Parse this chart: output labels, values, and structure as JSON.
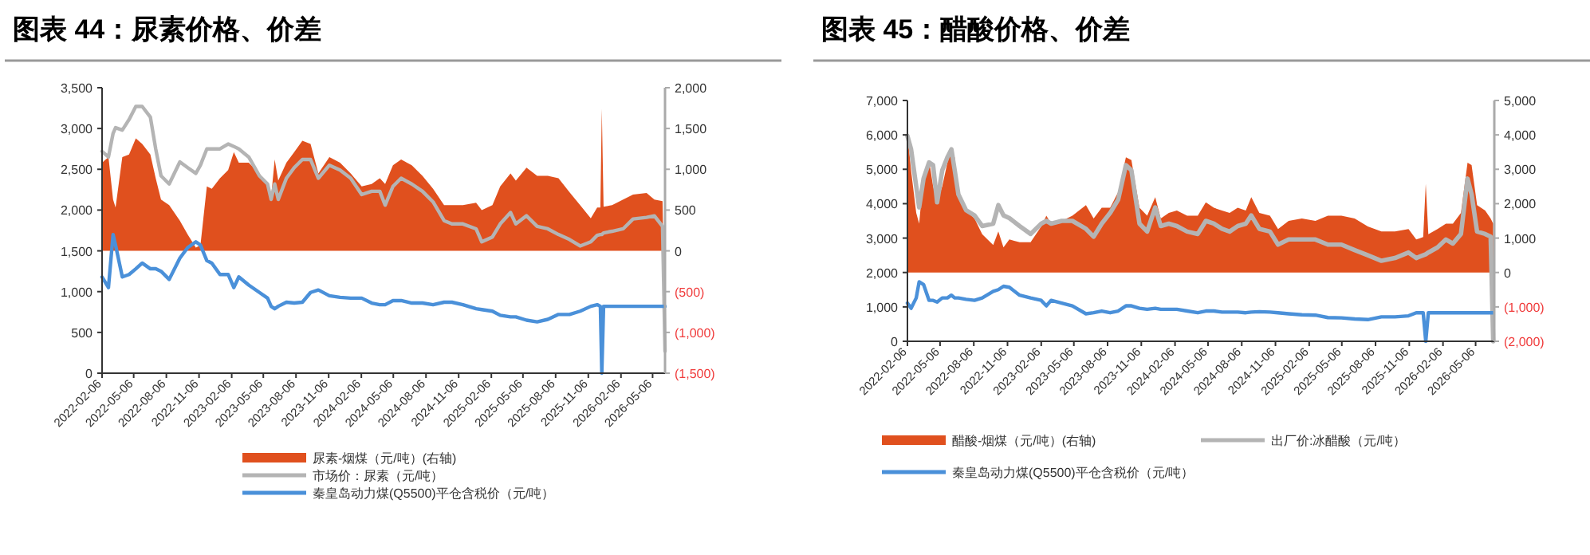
{
  "chart_data": [
    {
      "type": "line",
      "title": "图表 44：尿素价格、价差",
      "legend": "bottom",
      "x": [
        "2022-02-06",
        "2022-02-24",
        "2022-03-09",
        "2022-03-16",
        "2022-04-04",
        "2022-04-23",
        "2022-05-12",
        "2022-05-30",
        "2022-06-22",
        "2022-07-07",
        "2022-07-22",
        "2022-08-14",
        "2022-09-13",
        "2022-10-05",
        "2022-10-28",
        "2022-11-10",
        "2022-11-28",
        "2022-12-12",
        "2023-01-04",
        "2023-01-27",
        "2023-02-12",
        "2023-02-26",
        "2023-03-26",
        "2023-04-25",
        "2023-05-18",
        "2023-05-28",
        "2023-06-07",
        "2023-06-17",
        "2023-07-10",
        "2023-08-01",
        "2023-08-24",
        "2023-09-16",
        "2023-10-08",
        "2023-11-08",
        "2023-12-08",
        "2024-01-07",
        "2024-02-07",
        "2024-03-06",
        "2024-03-29",
        "2024-04-13",
        "2024-05-05",
        "2024-05-28",
        "2024-06-27",
        "2024-07-27",
        "2024-08-26",
        "2024-09-26",
        "2024-10-18",
        "2024-11-18",
        "2024-12-25",
        "2025-01-10",
        "2025-02-09",
        "2025-03-03",
        "2025-04-01",
        "2025-04-16",
        "2025-05-16",
        "2025-06-15",
        "2025-07-15",
        "2025-08-14",
        "2025-09-14",
        "2025-10-14",
        "2025-11-13",
        "2025-12-01",
        "2025-12-10",
        "2025-12-14",
        "2025-12-19",
        "2026-01-12",
        "2026-02-12",
        "2026-03-12",
        "2026-04-19",
        "2026-05-11",
        "2026-06-03",
        "2026-06-10"
      ],
      "xlim": [
        "2022-02-06",
        "2026-06-10"
      ],
      "xticks": [
        "2022-02-06",
        "2022-05-06",
        "2022-08-06",
        "2022-11-06",
        "2023-02-06",
        "2023-05-06",
        "2023-08-06",
        "2023-11-06",
        "2024-02-06",
        "2024-05-06",
        "2024-08-06",
        "2024-11-06",
        "2025-02-06",
        "2025-05-06",
        "2025-08-06",
        "2025-11-06",
        "2026-02-06",
        "2026-05-06"
      ],
      "ylim": [
        0,
        3500
      ],
      "yticks": [
        {
          "value": 0,
          "label": "0"
        },
        500,
        {
          "value": 1000,
          "label": "1,000"
        },
        {
          "value": 1500,
          "label": "1,500"
        },
        {
          "value": 2000,
          "label": "2,000"
        },
        {
          "value": 2500,
          "label": "2,500"
        },
        {
          "value": 3000,
          "label": "3,000"
        },
        {
          "value": 3500,
          "label": "3,500"
        }
      ],
      "y2lim": [
        -1500,
        2000
      ],
      "y2ticks": [
        {
          "value": -1500,
          "label": "(1,500)"
        },
        {
          "value": -1000,
          "label": "(1,000)"
        },
        {
          "value": -500,
          "label": "(500)"
        },
        {
          "value": 0,
          "label": "0"
        },
        500,
        {
          "value": 1000,
          "label": "1,000"
        },
        {
          "value": 1500,
          "label": "1,500"
        },
        {
          "value": 2000,
          "label": "2,000"
        }
      ],
      "series": [
        {
          "name": "尿素-烟煤（元/吨）(右轴)",
          "type": "area",
          "axis": "y2",
          "color": "#e0501e",
          "values": [
            1080,
            1150,
            630,
            530,
            1150,
            1180,
            1380,
            1310,
            1180,
            890,
            630,
            560,
            370,
            200,
            40,
            70,
            790,
            760,
            890,
            990,
            1210,
            1080,
            1080,
            950,
            820,
            660,
            1120,
            860,
            1080,
            1210,
            1350,
            1310,
            950,
            1150,
            1080,
            950,
            790,
            820,
            890,
            820,
            1050,
            1120,
            1050,
            920,
            760,
            560,
            560,
            560,
            590,
            500,
            560,
            790,
            950,
            860,
            1020,
            920,
            920,
            890,
            720,
            560,
            400,
            530,
            530,
            1740,
            540,
            560,
            630,
            690,
            710,
            630,
            610,
            -1230
          ]
        },
        {
          "name": "市场价：尿素（元/吨）",
          "color": "#b4b4b4",
          "values": [
            2720,
            2650,
            2940,
            3010,
            2980,
            3110,
            3270,
            3270,
            3140,
            2750,
            2420,
            2320,
            2590,
            2520,
            2450,
            2550,
            2750,
            2750,
            2750,
            2810,
            2780,
            2750,
            2650,
            2420,
            2320,
            2130,
            2320,
            2130,
            2390,
            2520,
            2620,
            2620,
            2390,
            2550,
            2490,
            2390,
            2190,
            2230,
            2230,
            2060,
            2290,
            2390,
            2320,
            2230,
            2100,
            1870,
            1830,
            1830,
            1770,
            1610,
            1670,
            1830,
            1970,
            1830,
            1930,
            1800,
            1770,
            1700,
            1640,
            1560,
            1610,
            1690,
            1700,
            1700,
            1720,
            1740,
            1770,
            1890,
            1910,
            1930,
            1800,
            270
          ]
        },
        {
          "name": "秦皇岛动力煤(Q5500)平仓含税价（元/吨）",
          "color": "#4a90d9",
          "values": [
            1180,
            1050,
            1700,
            1570,
            1180,
            1210,
            1280,
            1350,
            1280,
            1280,
            1250,
            1150,
            1410,
            1540,
            1610,
            1570,
            1380,
            1350,
            1210,
            1210,
            1050,
            1180,
            1080,
            990,
            920,
            820,
            790,
            820,
            870,
            860,
            870,
            990,
            1020,
            950,
            930,
            920,
            920,
            860,
            840,
            840,
            890,
            890,
            860,
            860,
            840,
            870,
            870,
            840,
            790,
            780,
            760,
            710,
            690,
            690,
            650,
            630,
            660,
            720,
            720,
            760,
            820,
            840,
            820,
            0,
            820,
            820,
            820,
            820,
            820,
            820,
            820,
            820
          ]
        }
      ]
    },
    {
      "type": "line",
      "title": "图表 45：醋酸价格、价差",
      "legend": "bottom",
      "x": [
        "2022-02-06",
        "2022-02-16",
        "2022-03-02",
        "2022-03-10",
        "2022-03-22",
        "2022-04-06",
        "2022-04-17",
        "2022-04-28",
        "2022-05-12",
        "2022-05-26",
        "2022-06-06",
        "2022-06-15",
        "2022-06-25",
        "2022-07-16",
        "2022-08-08",
        "2022-08-29",
        "2022-09-28",
        "2022-10-12",
        "2022-10-26",
        "2022-11-11",
        "2022-12-09",
        "2023-01-08",
        "2023-02-06",
        "2023-02-20",
        "2023-03-05",
        "2023-04-03",
        "2023-05-02",
        "2023-06-08",
        "2023-06-29",
        "2023-07-21",
        "2023-08-13",
        "2023-09-04",
        "2023-09-25",
        "2023-10-10",
        "2023-11-01",
        "2023-11-22",
        "2023-12-14",
        "2023-12-29",
        "2024-01-20",
        "2024-02-11",
        "2024-03-10",
        "2024-04-08",
        "2024-04-30",
        "2024-05-22",
        "2024-06-13",
        "2024-07-04",
        "2024-07-26",
        "2024-08-17",
        "2024-09-01",
        "2024-09-23",
        "2024-10-22",
        "2024-11-13",
        "2024-12-12",
        "2025-01-17",
        "2025-02-23",
        "2025-03-29",
        "2025-05-05",
        "2025-06-10",
        "2025-07-16",
        "2025-08-22",
        "2025-09-28",
        "2025-11-04",
        "2025-11-25",
        "2025-12-14",
        "2025-12-21",
        "2025-12-28",
        "2026-01-22",
        "2026-02-14",
        "2026-03-05",
        "2026-03-27",
        "2026-04-14",
        "2026-04-25",
        "2026-05-10",
        "2026-06-01",
        "2026-06-16",
        "2026-06-23"
      ],
      "xlim": [
        "2022-02-06",
        "2026-06-26"
      ],
      "xticks": [
        "2022-02-06",
        "2022-05-06",
        "2022-08-06",
        "2022-11-06",
        "2023-02-06",
        "2023-05-06",
        "2023-08-06",
        "2023-11-06",
        "2024-02-06",
        "2024-05-06",
        "2024-08-06",
        "2024-11-06",
        "2025-02-06",
        "2025-05-06",
        "2025-08-06",
        "2025-11-06",
        "2026-02-06",
        "2026-05-06"
      ],
      "ylim": [
        0,
        7000
      ],
      "yticks": [
        {
          "value": 0,
          "label": "0"
        },
        {
          "value": 1000,
          "label": "1,000"
        },
        {
          "value": 2000,
          "label": "2,000"
        },
        {
          "value": 3000,
          "label": "3,000"
        },
        {
          "value": 4000,
          "label": "4,000"
        },
        {
          "value": 5000,
          "label": "5,000"
        },
        {
          "value": 6000,
          "label": "6,000"
        },
        {
          "value": 7000,
          "label": "7,000"
        }
      ],
      "y2lim": [
        -2000,
        5000
      ],
      "y2ticks": [
        {
          "value": -2000,
          "label": "(2,000)"
        },
        {
          "value": -1000,
          "label": "(1,000)"
        },
        {
          "value": 0,
          "label": "0"
        },
        {
          "value": 1000,
          "label": "1,000"
        },
        {
          "value": 2000,
          "label": "2,000"
        },
        {
          "value": 3000,
          "label": "3,000"
        },
        {
          "value": 4000,
          "label": "4,000"
        },
        {
          "value": 5000,
          "label": "5,000"
        }
      ],
      "series": [
        {
          "name": "醋酸-烟煤（元/吨）(右轴)",
          "type": "area",
          "axis": "y2",
          "color": "#e0501e",
          "values": [
            4040,
            2960,
            1730,
            1420,
            2810,
            3270,
            2500,
            2040,
            2500,
            3190,
            3580,
            3350,
            2190,
            1800,
            1570,
            1110,
            800,
            1190,
            730,
            960,
            880,
            880,
            1340,
            1650,
            1420,
            1500,
            1650,
            1960,
            1570,
            1880,
            1880,
            2340,
            3350,
            3270,
            1880,
            1650,
            2190,
            1570,
            1730,
            1800,
            1650,
            1650,
            2040,
            1880,
            1800,
            1730,
            1880,
            1800,
            2190,
            1730,
            1650,
            1260,
            1500,
            1570,
            1500,
            1650,
            1650,
            1570,
            1340,
            1190,
            1190,
            1260,
            960,
            1030,
            2580,
            1110,
            1260,
            1420,
            1420,
            1730,
            3190,
            3120,
            1960,
            1800,
            1570,
            1420
          ]
        },
        {
          "name": "出厂价:冰醋酸（元/吨）",
          "color": "#b4b4b4",
          "values": [
            5970,
            5580,
            4500,
            3890,
            4730,
            5200,
            5120,
            4040,
            4970,
            5350,
            5580,
            4970,
            4270,
            3810,
            3660,
            3350,
            3420,
            3960,
            3660,
            3580,
            3350,
            3120,
            3420,
            3500,
            3420,
            3500,
            3500,
            3270,
            3040,
            3420,
            3730,
            4120,
            5120,
            4970,
            3420,
            3190,
            3890,
            3350,
            3420,
            3350,
            3190,
            3120,
            3500,
            3420,
            3270,
            3190,
            3350,
            3420,
            3660,
            3270,
            3190,
            2810,
            2960,
            2960,
            2960,
            2810,
            2810,
            2650,
            2500,
            2340,
            2420,
            2580,
            2420,
            2500,
            2530,
            2580,
            2730,
            2960,
            2840,
            3120,
            4730,
            4270,
            3190,
            3120,
            3040,
            0
          ]
        },
        {
          "name": "秦皇岛动力煤(Q5500)平仓含税价（元/吨）",
          "color": "#4a90d9",
          "values": [
            1110,
            960,
            1260,
            1730,
            1650,
            1190,
            1190,
            1140,
            1260,
            1260,
            1340,
            1260,
            1260,
            1220,
            1190,
            1260,
            1450,
            1500,
            1600,
            1570,
            1340,
            1260,
            1190,
            1030,
            1190,
            1110,
            1030,
            800,
            830,
            880,
            830,
            880,
            1030,
            1030,
            960,
            930,
            960,
            930,
            930,
            930,
            880,
            830,
            880,
            880,
            850,
            850,
            850,
            830,
            850,
            860,
            850,
            830,
            800,
            770,
            760,
            690,
            680,
            650,
            630,
            710,
            710,
            740,
            830,
            830,
            0,
            830,
            830,
            830,
            830,
            830,
            830,
            830,
            830,
            830,
            830,
            830
          ]
        }
      ]
    }
  ]
}
